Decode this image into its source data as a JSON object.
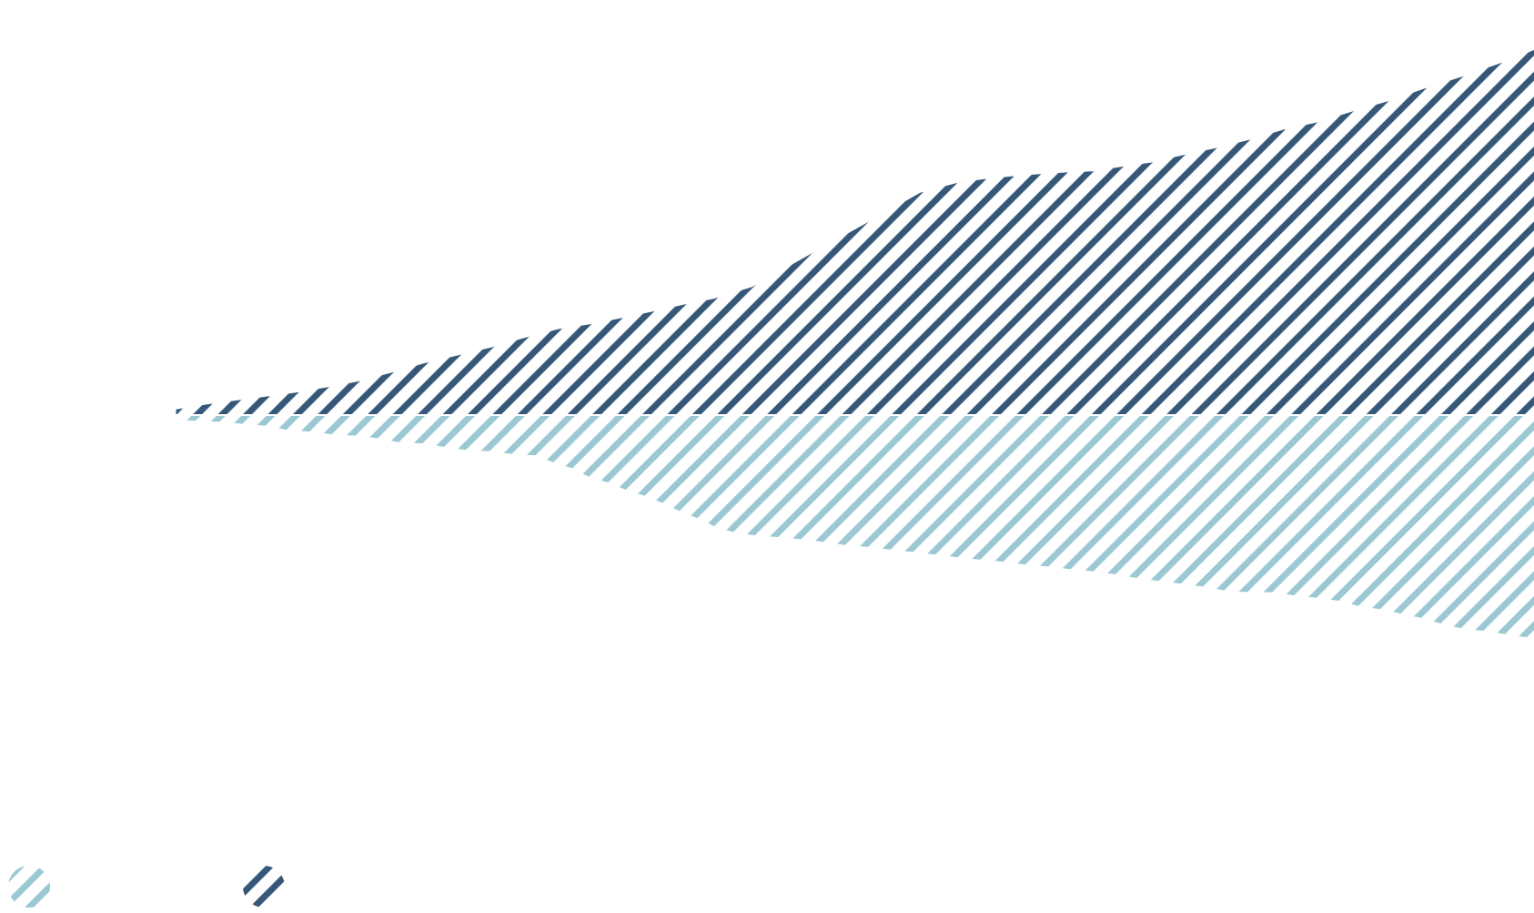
{
  "chart_data": {
    "type": "area",
    "title": "",
    "xlabel": "",
    "ylabel": "",
    "grid": false,
    "legend_position": "bottom-left",
    "fill_style": "diagonal-hatch",
    "colors": {
      "light": "#9bc8d3",
      "dark": "#365878"
    },
    "xlim": [
      0,
      100
    ],
    "ylim": [
      -61,
      100
    ],
    "series": [
      {
        "color": "#365878",
        "direction": "above-baseline",
        "x": [
          0,
          2.3,
          4.5,
          6.6,
          8.8,
          11,
          13.3,
          15.8,
          18.3,
          20.7,
          23.2,
          25.7,
          28.2,
          30.5,
          32.7,
          35.1,
          37.4,
          39.6,
          42.4,
          46.5,
          50.7,
          54.8,
          57.4,
          59.4,
          61.5,
          63.5,
          65.6,
          67.5,
          69.7,
          71.8,
          74.2,
          76.6,
          79,
          81.6,
          84,
          86.6,
          89.3,
          92,
          94.7,
          97.6,
          100
        ],
        "values": [
          1.3,
          2.7,
          3.8,
          4.8,
          5.9,
          7.3,
          8.9,
          11.3,
          14,
          16.1,
          18.3,
          21,
          23.4,
          24.7,
          26.3,
          28.2,
          30.1,
          31.7,
          34.9,
          43.5,
          52.2,
          60.8,
          63.4,
          64.5,
          65.3,
          65.9,
          66.4,
          66.7,
          68,
          69.1,
          71.2,
          73.1,
          75.3,
          78.2,
          80.1,
          83.1,
          86,
          89.5,
          92.7,
          96.5,
          100
        ]
      },
      {
        "color": "#9bc8d3",
        "direction": "below-baseline",
        "x": [
          0,
          1.6,
          3.2,
          5,
          6.6,
          8.2,
          9.9,
          11.6,
          13.3,
          15,
          16.5,
          18.2,
          19.9,
          21.5,
          23.2,
          24.9,
          26.5,
          27.9,
          29.3,
          30.5,
          31.9,
          33.2,
          34.6,
          36,
          37.2,
          38.5,
          39.8,
          41.2,
          42.7,
          44.5,
          46.2,
          47.9,
          49.4,
          51.2,
          52.8,
          54.5,
          56.2,
          57.9,
          59.4,
          61.2,
          62.7,
          64.4,
          66.1,
          67.7,
          69.2,
          70.9,
          72.6,
          74.3,
          75.9,
          77.5,
          79.2,
          80.9,
          82.7,
          84.3,
          85.7,
          87.3,
          89,
          90.5,
          91.9,
          93.4,
          95,
          96.7,
          98.3,
          100
        ],
        "values": [
          1.1,
          1.3,
          1.6,
          2.2,
          2.7,
          3.8,
          4.3,
          5.1,
          5.4,
          6.2,
          7.3,
          7.5,
          8.6,
          9.4,
          9.7,
          10.5,
          10.8,
          12.9,
          14.5,
          16.9,
          18.3,
          20.4,
          22,
          24.2,
          26.3,
          28.2,
          30.6,
          32,
          32.8,
          33.3,
          33.9,
          34.7,
          35.5,
          36,
          36.8,
          37.4,
          38.2,
          39,
          39.5,
          40.1,
          40.9,
          41.4,
          42.2,
          42.7,
          43.5,
          44.6,
          45.4,
          46.2,
          47,
          48.1,
          48.4,
          48.4,
          49.5,
          50,
          50.8,
          52.4,
          53.2,
          54.6,
          55.6,
          57.3,
          58.6,
          59.1,
          60.2,
          61
        ]
      }
    ],
    "legend": [
      {
        "color": "#9bc8d3",
        "icon": "hatched-circle"
      },
      {
        "color": "#365878",
        "icon": "hatched-circle"
      }
    ]
  }
}
